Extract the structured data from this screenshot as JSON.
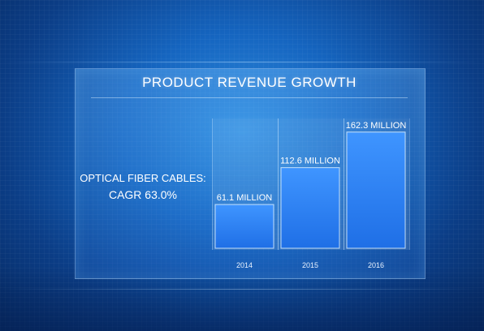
{
  "chart_data": {
    "type": "bar",
    "title": "PRODUCT REVENUE GROWTH",
    "categories": [
      "2014",
      "2015",
      "2016"
    ],
    "values": [
      61.1,
      112.6,
      162.3
    ],
    "data_labels": [
      "61.1 MILLION",
      "112.6 MILLION",
      "162.3 MILLION"
    ],
    "ylim": [
      0,
      170
    ],
    "grid": false,
    "bar_color": "#2b7ff0"
  },
  "side_text": {
    "line1": "OPTICAL FIBER CABLES:",
    "line2": "CAGR 63.0%"
  },
  "colors": {
    "background": "#1565c0",
    "text": "#ffffff"
  }
}
